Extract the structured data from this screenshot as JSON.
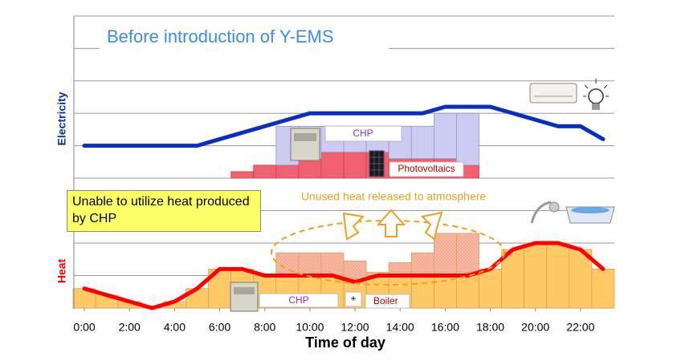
{
  "chart_data": [
    {
      "type": "combo",
      "title": "Before introduction of Y-EMS",
      "ylabel": "Electricity",
      "xlim": [
        -0.5,
        23.5
      ],
      "ylim": [
        0,
        5
      ],
      "yticks": [
        0,
        1,
        2,
        3,
        4,
        5
      ],
      "grid": true,
      "series": [
        {
          "name": "Photovoltaics",
          "color": "#f0606e",
          "x": [
            7,
            8,
            9,
            10,
            11,
            12,
            13,
            14,
            15,
            16,
            17
          ],
          "values": [
            0.2,
            0.4,
            0.4,
            0.6,
            0.8,
            0.8,
            0.8,
            0.6,
            0.6,
            0.6,
            0.4
          ]
        },
        {
          "name": "CHP",
          "color": "#ccccf2",
          "x": [
            7,
            8,
            9,
            10,
            11,
            12,
            13,
            14,
            15,
            16,
            17
          ],
          "values": [
            0,
            0,
            1.2,
            1.0,
            0.8,
            0.8,
            0.8,
            1.0,
            1.0,
            1.4,
            1.6
          ]
        }
      ],
      "line": {
        "color": "#0a2fbf",
        "x": [
          0,
          5,
          10,
          15,
          16,
          18,
          21,
          22,
          23
        ],
        "values": [
          1,
          1,
          2,
          2,
          2.2,
          2.2,
          1.6,
          1.6,
          1.2
        ]
      }
    },
    {
      "type": "combo",
      "ylabel": "Heat",
      "xlabel": "Time of day",
      "xlim": [
        -0.5,
        23.5
      ],
      "ylim": [
        0,
        4
      ],
      "yticks": [
        0,
        1,
        2,
        3,
        4
      ],
      "grid": true,
      "xticks": [
        {
          "value": 0,
          "label": "0:00"
        },
        {
          "value": 2,
          "label": "2:00"
        },
        {
          "value": 4,
          "label": "4:00"
        },
        {
          "value": 6,
          "label": "6:00"
        },
        {
          "value": 8,
          "label": "8:00"
        },
        {
          "value": 10,
          "label": "10:00"
        },
        {
          "value": 12,
          "label": "12:00"
        },
        {
          "value": 14,
          "label": "14:00"
        },
        {
          "value": 16,
          "label": "16:00"
        },
        {
          "value": 18,
          "label": "18:00"
        },
        {
          "value": 20,
          "label": "20:00"
        },
        {
          "value": 22,
          "label": "22:00"
        }
      ],
      "series": [
        {
          "color": "#ffc966",
          "x": [
            0,
            1,
            2,
            3,
            4,
            5,
            6,
            7,
            8,
            9,
            10,
            11,
            12,
            13,
            14,
            15,
            16,
            17,
            18,
            19,
            20,
            21,
            22,
            23
          ],
          "values": [
            0.6,
            0.4,
            0.2,
            0,
            0.2,
            0.6,
            1.2,
            1.2,
            1.0,
            1.0,
            1.0,
            1.0,
            0.85,
            1.0,
            1.0,
            1.0,
            1.0,
            1.0,
            1.2,
            1.8,
            2.0,
            2.0,
            1.8,
            1.2
          ]
        },
        {
          "color": "#f9b9a0",
          "x": [
            9,
            10,
            11,
            12,
            13,
            14,
            15,
            16,
            17
          ],
          "values": [
            0.7,
            0.7,
            0.7,
            0.6,
            0.1,
            0.4,
            0.7,
            1.3,
            1.3
          ]
        }
      ],
      "line": {
        "color": "#ff0000",
        "x": [
          0,
          1,
          2,
          3,
          4,
          5,
          6,
          7,
          8,
          9,
          10,
          11,
          12,
          13,
          14,
          15,
          16,
          17,
          18,
          19,
          20,
          21,
          22,
          23
        ],
        "values": [
          0.6,
          0.4,
          0.2,
          0,
          0.2,
          0.6,
          1.2,
          1.2,
          1.0,
          1.0,
          1.0,
          1.0,
          0.8,
          1.0,
          1.0,
          1.0,
          1.0,
          1.0,
          1.2,
          1.8,
          2.0,
          2.0,
          1.8,
          1.2
        ]
      },
      "annotations": [
        "Unused heat released to atmosphere",
        "Unable to utilize heat produced by CHP",
        "CHP",
        "+",
        "Boiler"
      ]
    }
  ]
}
